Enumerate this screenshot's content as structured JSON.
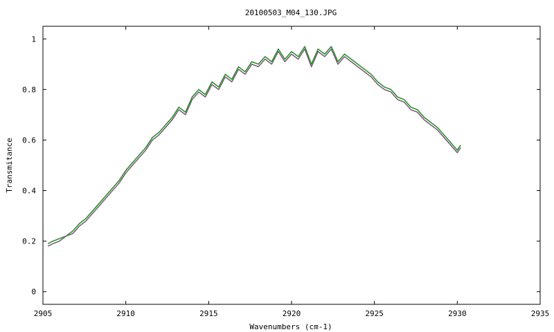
{
  "chart_data": {
    "type": "line",
    "title": "20100503_M04_130.JPG",
    "xlabel": "Wavenumbers (cm-1)",
    "ylabel": "Transmitance",
    "xlim": [
      2905,
      2935
    ],
    "ylim": [
      -0.05,
      1.05
    ],
    "xticks": [
      2905,
      2910,
      2915,
      2920,
      2925,
      2930,
      2935
    ],
    "xtick_labels": [
      "2905",
      "2910",
      "2915",
      "2920",
      "2925",
      "2930",
      "2935"
    ],
    "yticks": [
      0,
      0.2,
      0.4,
      0.6,
      0.8,
      1
    ],
    "ytick_labels": [
      "0",
      "0.2",
      "0.4",
      "0.6",
      "0.8",
      "1"
    ],
    "grid": false,
    "legend": "none",
    "series": [
      {
        "color": "#2f8f2f",
        "x": [
          2905.3,
          2905.6,
          2906.0,
          2906.4,
          2906.8,
          2907.2,
          2907.6,
          2908.0,
          2908.4,
          2908.8,
          2909.2,
          2909.6,
          2910.0,
          2910.4,
          2910.8,
          2911.2,
          2911.6,
          2912.0,
          2912.4,
          2912.8,
          2913.2,
          2913.6,
          2914.0,
          2914.4,
          2914.8,
          2915.2,
          2915.6,
          2916.0,
          2916.4,
          2916.8,
          2917.2,
          2917.6,
          2918.0,
          2918.4,
          2918.8,
          2919.2,
          2919.6,
          2920.0,
          2920.4,
          2920.8,
          2921.2,
          2921.6,
          2922.0,
          2922.4,
          2922.8,
          2923.2,
          2923.6,
          2924.0,
          2924.4,
          2924.8,
          2925.2,
          2925.6,
          2926.0,
          2926.4,
          2926.8,
          2927.2,
          2927.6,
          2928.0,
          2928.4,
          2928.8,
          2929.2,
          2929.6,
          2930.0,
          2930.2
        ],
        "y": [
          0.19,
          0.2,
          0.21,
          0.22,
          0.24,
          0.27,
          0.29,
          0.32,
          0.35,
          0.38,
          0.41,
          0.44,
          0.48,
          0.51,
          0.54,
          0.57,
          0.61,
          0.63,
          0.66,
          0.69,
          0.73,
          0.71,
          0.77,
          0.8,
          0.78,
          0.83,
          0.81,
          0.86,
          0.84,
          0.89,
          0.87,
          0.91,
          0.9,
          0.93,
          0.91,
          0.96,
          0.92,
          0.95,
          0.93,
          0.97,
          0.9,
          0.96,
          0.94,
          0.97,
          0.91,
          0.94,
          0.92,
          0.9,
          0.88,
          0.86,
          0.83,
          0.81,
          0.8,
          0.77,
          0.76,
          0.73,
          0.72,
          0.69,
          0.67,
          0.65,
          0.62,
          0.59,
          0.56,
          0.58
        ]
      },
      {
        "color": "#7a5f7a",
        "x": [
          2905.3,
          2905.6,
          2906.0,
          2906.4,
          2906.8,
          2907.2,
          2907.6,
          2908.0,
          2908.4,
          2908.8,
          2909.2,
          2909.6,
          2910.0,
          2910.4,
          2910.8,
          2911.2,
          2911.6,
          2912.0,
          2912.4,
          2912.8,
          2913.2,
          2913.6,
          2914.0,
          2914.4,
          2914.8,
          2915.2,
          2915.6,
          2916.0,
          2916.4,
          2916.8,
          2917.2,
          2917.6,
          2918.0,
          2918.4,
          2918.8,
          2919.2,
          2919.6,
          2920.0,
          2920.4,
          2920.8,
          2921.2,
          2921.6,
          2922.0,
          2922.4,
          2922.8,
          2923.2,
          2923.6,
          2924.0,
          2924.4,
          2924.8,
          2925.2,
          2925.6,
          2926.0,
          2926.4,
          2926.8,
          2927.2,
          2927.6,
          2928.0,
          2928.4,
          2928.8,
          2929.2,
          2929.6,
          2930.0,
          2930.2
        ],
        "y": [
          0.18,
          0.19,
          0.2,
          0.22,
          0.23,
          0.26,
          0.28,
          0.31,
          0.34,
          0.37,
          0.4,
          0.43,
          0.47,
          0.5,
          0.53,
          0.56,
          0.6,
          0.62,
          0.65,
          0.68,
          0.72,
          0.7,
          0.76,
          0.79,
          0.77,
          0.82,
          0.8,
          0.85,
          0.83,
          0.88,
          0.86,
          0.9,
          0.89,
          0.92,
          0.9,
          0.95,
          0.91,
          0.94,
          0.92,
          0.96,
          0.89,
          0.95,
          0.93,
          0.96,
          0.9,
          0.93,
          0.91,
          0.89,
          0.87,
          0.85,
          0.82,
          0.8,
          0.79,
          0.76,
          0.75,
          0.72,
          0.71,
          0.68,
          0.66,
          0.64,
          0.61,
          0.58,
          0.55,
          0.57
        ]
      }
    ]
  }
}
